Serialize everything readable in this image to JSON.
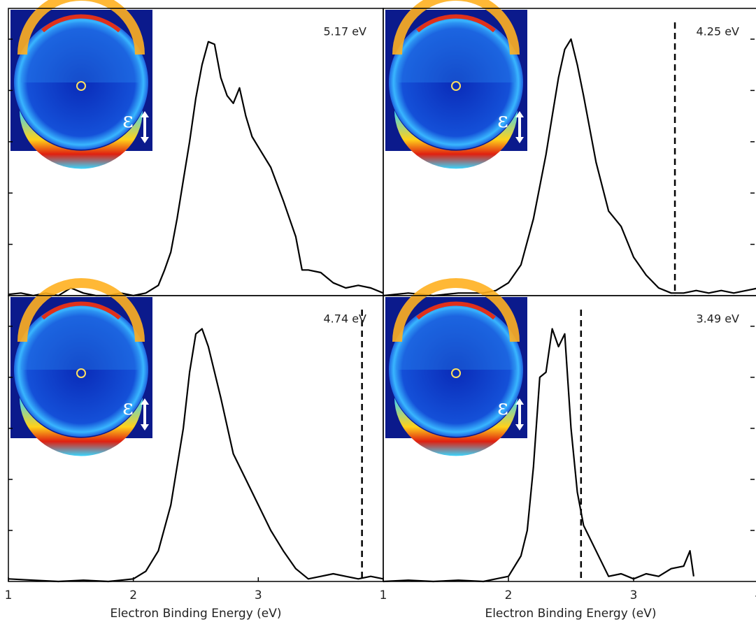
{
  "chart_data": [
    {
      "type": "line",
      "annotation": "5.17 eV",
      "inset_label": "ε",
      "xlim": [
        1,
        4
      ],
      "ylim": [
        0,
        1.12
      ],
      "yticks": [
        0.2,
        0.4,
        0.6,
        0.8,
        1.0
      ],
      "ytick_side": "left",
      "x": [
        1.0,
        1.1,
        1.2,
        1.3,
        1.4,
        1.5,
        1.6,
        1.7,
        1.8,
        1.9,
        2.0,
        2.1,
        2.2,
        2.25,
        2.3,
        2.35,
        2.4,
        2.45,
        2.5,
        2.55,
        2.6,
        2.65,
        2.7,
        2.75,
        2.8,
        2.85,
        2.9,
        2.95,
        3.0,
        3.1,
        3.2,
        3.3,
        3.35,
        3.4,
        3.5,
        3.6,
        3.7,
        3.8,
        3.9,
        4.0
      ],
      "series": [
        {
          "color": "#000000",
          "values": [
            0.005,
            0.01,
            0,
            0.01,
            0,
            0.03,
            0.01,
            0,
            0,
            0.01,
            0,
            0.01,
            0.04,
            0.1,
            0.17,
            0.3,
            0.45,
            0.6,
            0.77,
            0.9,
            0.99,
            0.98,
            0.85,
            0.78,
            0.75,
            0.81,
            0.7,
            0.62,
            0.58,
            0.5,
            0.37,
            0.23,
            0.1,
            0.1,
            0.09,
            0.05,
            0.03,
            0.04,
            0.03,
            0.01
          ]
        }
      ]
    },
    {
      "type": "line",
      "annotation": "4.25 eV",
      "inset_label": "ε",
      "xlim": [
        1,
        4
      ],
      "ylim": [
        0,
        1.12
      ],
      "yticks": [
        0.2,
        0.4,
        0.6,
        0.8,
        1.0
      ],
      "ytick_side": "right",
      "threshold_x": 3.33,
      "x": [
        1.0,
        1.2,
        1.4,
        1.6,
        1.8,
        1.9,
        2.0,
        2.1,
        2.2,
        2.3,
        2.35,
        2.4,
        2.45,
        2.5,
        2.55,
        2.6,
        2.7,
        2.8,
        2.9,
        3.0,
        3.1,
        3.2,
        3.3,
        3.4,
        3.5,
        3.6,
        3.7,
        3.8,
        3.9,
        4.0
      ],
      "series": [
        {
          "color": "#000000",
          "values": [
            0,
            0.01,
            0,
            0.01,
            0.01,
            0.02,
            0.05,
            0.12,
            0.3,
            0.55,
            0.7,
            0.85,
            0.96,
            1.0,
            0.9,
            0.78,
            0.52,
            0.33,
            0.27,
            0.15,
            0.08,
            0.03,
            0.01,
            0.01,
            0.02,
            0.01,
            0.02,
            0.01,
            0.02,
            0.03
          ]
        }
      ]
    },
    {
      "type": "line",
      "annotation": "4.74 eV",
      "inset_label": "ε",
      "xlim": [
        1,
        4
      ],
      "ylim": [
        0,
        1.12
      ],
      "yticks": [
        0.2,
        0.4,
        0.6,
        0.8,
        1.0
      ],
      "ytick_side": "left",
      "threshold_x": 3.83,
      "xticks": [
        1,
        2,
        3
      ],
      "xlabel": "Electron Binding Energy (eV)",
      "x": [
        1.0,
        1.2,
        1.4,
        1.6,
        1.8,
        1.9,
        2.0,
        2.1,
        2.2,
        2.3,
        2.4,
        2.45,
        2.5,
        2.55,
        2.6,
        2.7,
        2.8,
        2.9,
        3.0,
        3.1,
        3.2,
        3.3,
        3.4,
        3.5,
        3.6,
        3.7,
        3.8,
        3.9,
        4.0
      ],
      "series": [
        {
          "color": "#000000",
          "values": [
            0.01,
            0.005,
            0,
            0.005,
            0,
            0.005,
            0.01,
            0.04,
            0.12,
            0.3,
            0.6,
            0.82,
            0.97,
            0.99,
            0.92,
            0.72,
            0.5,
            0.4,
            0.3,
            0.2,
            0.12,
            0.05,
            0.01,
            0.02,
            0.03,
            0.02,
            0.01,
            0.02,
            0.01
          ]
        }
      ]
    },
    {
      "type": "line",
      "annotation": "3.49 eV",
      "inset_label": "ε",
      "xlim": [
        1,
        4
      ],
      "ylim": [
        0,
        1.12
      ],
      "yticks": [
        0.2,
        0.4,
        0.6,
        0.8,
        1.0
      ],
      "ytick_side": "right",
      "threshold_x": 2.58,
      "xticks": [
        1,
        2,
        3,
        4
      ],
      "xlabel": "Electron Binding Energy (eV)",
      "x": [
        1.0,
        1.2,
        1.4,
        1.6,
        1.8,
        1.9,
        2.0,
        2.1,
        2.15,
        2.2,
        2.25,
        2.3,
        2.35,
        2.4,
        2.45,
        2.5,
        2.55,
        2.6,
        2.7,
        2.8,
        2.9,
        3.0,
        3.1,
        3.2,
        3.3,
        3.4,
        3.45,
        3.48
      ],
      "series": [
        {
          "color": "#000000",
          "values": [
            0,
            0.005,
            0,
            0.005,
            0,
            0.01,
            0.02,
            0.1,
            0.2,
            0.45,
            0.8,
            0.82,
            0.99,
            0.92,
            0.97,
            0.6,
            0.35,
            0.22,
            0.12,
            0.02,
            0.03,
            0.01,
            0.03,
            0.02,
            0.05,
            0.06,
            0.12,
            0.02
          ]
        }
      ]
    }
  ]
}
